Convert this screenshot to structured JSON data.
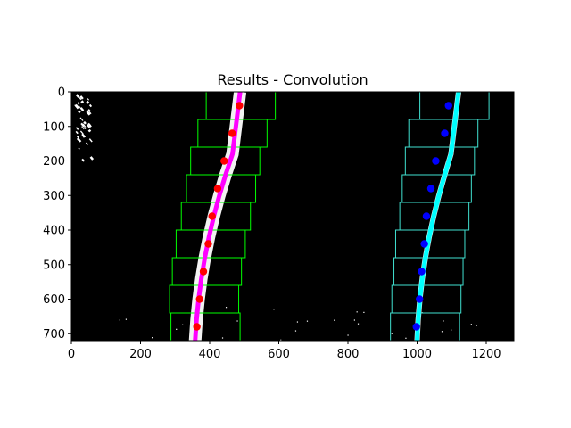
{
  "chart_data": {
    "type": "scatter",
    "title": "Results - Convolution",
    "xlabel": "",
    "ylabel": "",
    "xlim": [
      0,
      1280
    ],
    "ylim": [
      720,
      0
    ],
    "xticks": [
      0,
      200,
      400,
      600,
      800,
      1000,
      1200
    ],
    "yticks": [
      0,
      100,
      200,
      300,
      400,
      500,
      600,
      700
    ],
    "grid": false,
    "background": "#000000",
    "series": [
      {
        "role": "left-lane-fit",
        "kind": "line",
        "color": "#ff00ff",
        "x": [
          358,
          362,
          368,
          376,
          386,
          398,
          412,
          428,
          446,
          466,
          488
        ],
        "y": [
          720,
          660,
          600,
          540,
          480,
          420,
          360,
          300,
          240,
          180,
          0
        ]
      },
      {
        "role": "right-lane-fit",
        "kind": "line",
        "color": "#00ffff",
        "x": [
          1000,
          1003,
          1008,
          1015,
          1024,
          1035,
          1048,
          1063,
          1080,
          1098,
          1120
        ],
        "y": [
          720,
          660,
          600,
          540,
          480,
          420,
          360,
          300,
          240,
          180,
          0
        ]
      },
      {
        "role": "left-window-centers",
        "kind": "points",
        "color": "#ff0000",
        "x": [
          363,
          371,
          382,
          396,
          407,
          423,
          442,
          465,
          486
        ],
        "y": [
          680,
          600,
          520,
          440,
          360,
          280,
          200,
          120,
          40
        ]
      },
      {
        "role": "right-window-centers",
        "kind": "points",
        "color": "#0000ff",
        "x": [
          998,
          1007,
          1013,
          1021,
          1027,
          1040,
          1054,
          1080,
          1091
        ],
        "y": [
          680,
          600,
          520,
          440,
          360,
          280,
          200,
          120,
          40
        ]
      }
    ],
    "windows": {
      "left_color": "#00ff00",
      "right_color": "#40e0d0",
      "left": [
        {
          "x": [
            288,
            488
          ],
          "y": [
            640,
            720
          ]
        },
        {
          "x": [
            284,
            484
          ],
          "y": [
            560,
            640
          ]
        },
        {
          "x": [
            292,
            492
          ],
          "y": [
            480,
            560
          ]
        },
        {
          "x": [
            303,
            503
          ],
          "y": [
            400,
            480
          ]
        },
        {
          "x": [
            318,
            518
          ],
          "y": [
            320,
            400
          ]
        },
        {
          "x": [
            333,
            533
          ],
          "y": [
            240,
            320
          ]
        },
        {
          "x": [
            345,
            545
          ],
          "y": [
            160,
            240
          ]
        },
        {
          "x": [
            366,
            566
          ],
          "y": [
            80,
            160
          ]
        },
        {
          "x": [
            390,
            590
          ],
          "y": [
            0,
            80
          ]
        }
      ],
      "right": [
        {
          "x": [
            923,
            1123
          ],
          "y": [
            640,
            720
          ]
        },
        {
          "x": [
            927,
            1127
          ],
          "y": [
            560,
            640
          ]
        },
        {
          "x": [
            933,
            1133
          ],
          "y": [
            480,
            560
          ]
        },
        {
          "x": [
            938,
            1138
          ],
          "y": [
            400,
            480
          ]
        },
        {
          "x": [
            950,
            1150
          ],
          "y": [
            320,
            400
          ]
        },
        {
          "x": [
            957,
            1157
          ],
          "y": [
            240,
            320
          ]
        },
        {
          "x": [
            966,
            1166
          ],
          "y": [
            160,
            240
          ]
        },
        {
          "x": [
            976,
            1176
          ],
          "y": [
            80,
            160
          ]
        },
        {
          "x": [
            1008,
            1208
          ],
          "y": [
            0,
            80
          ]
        }
      ]
    }
  }
}
